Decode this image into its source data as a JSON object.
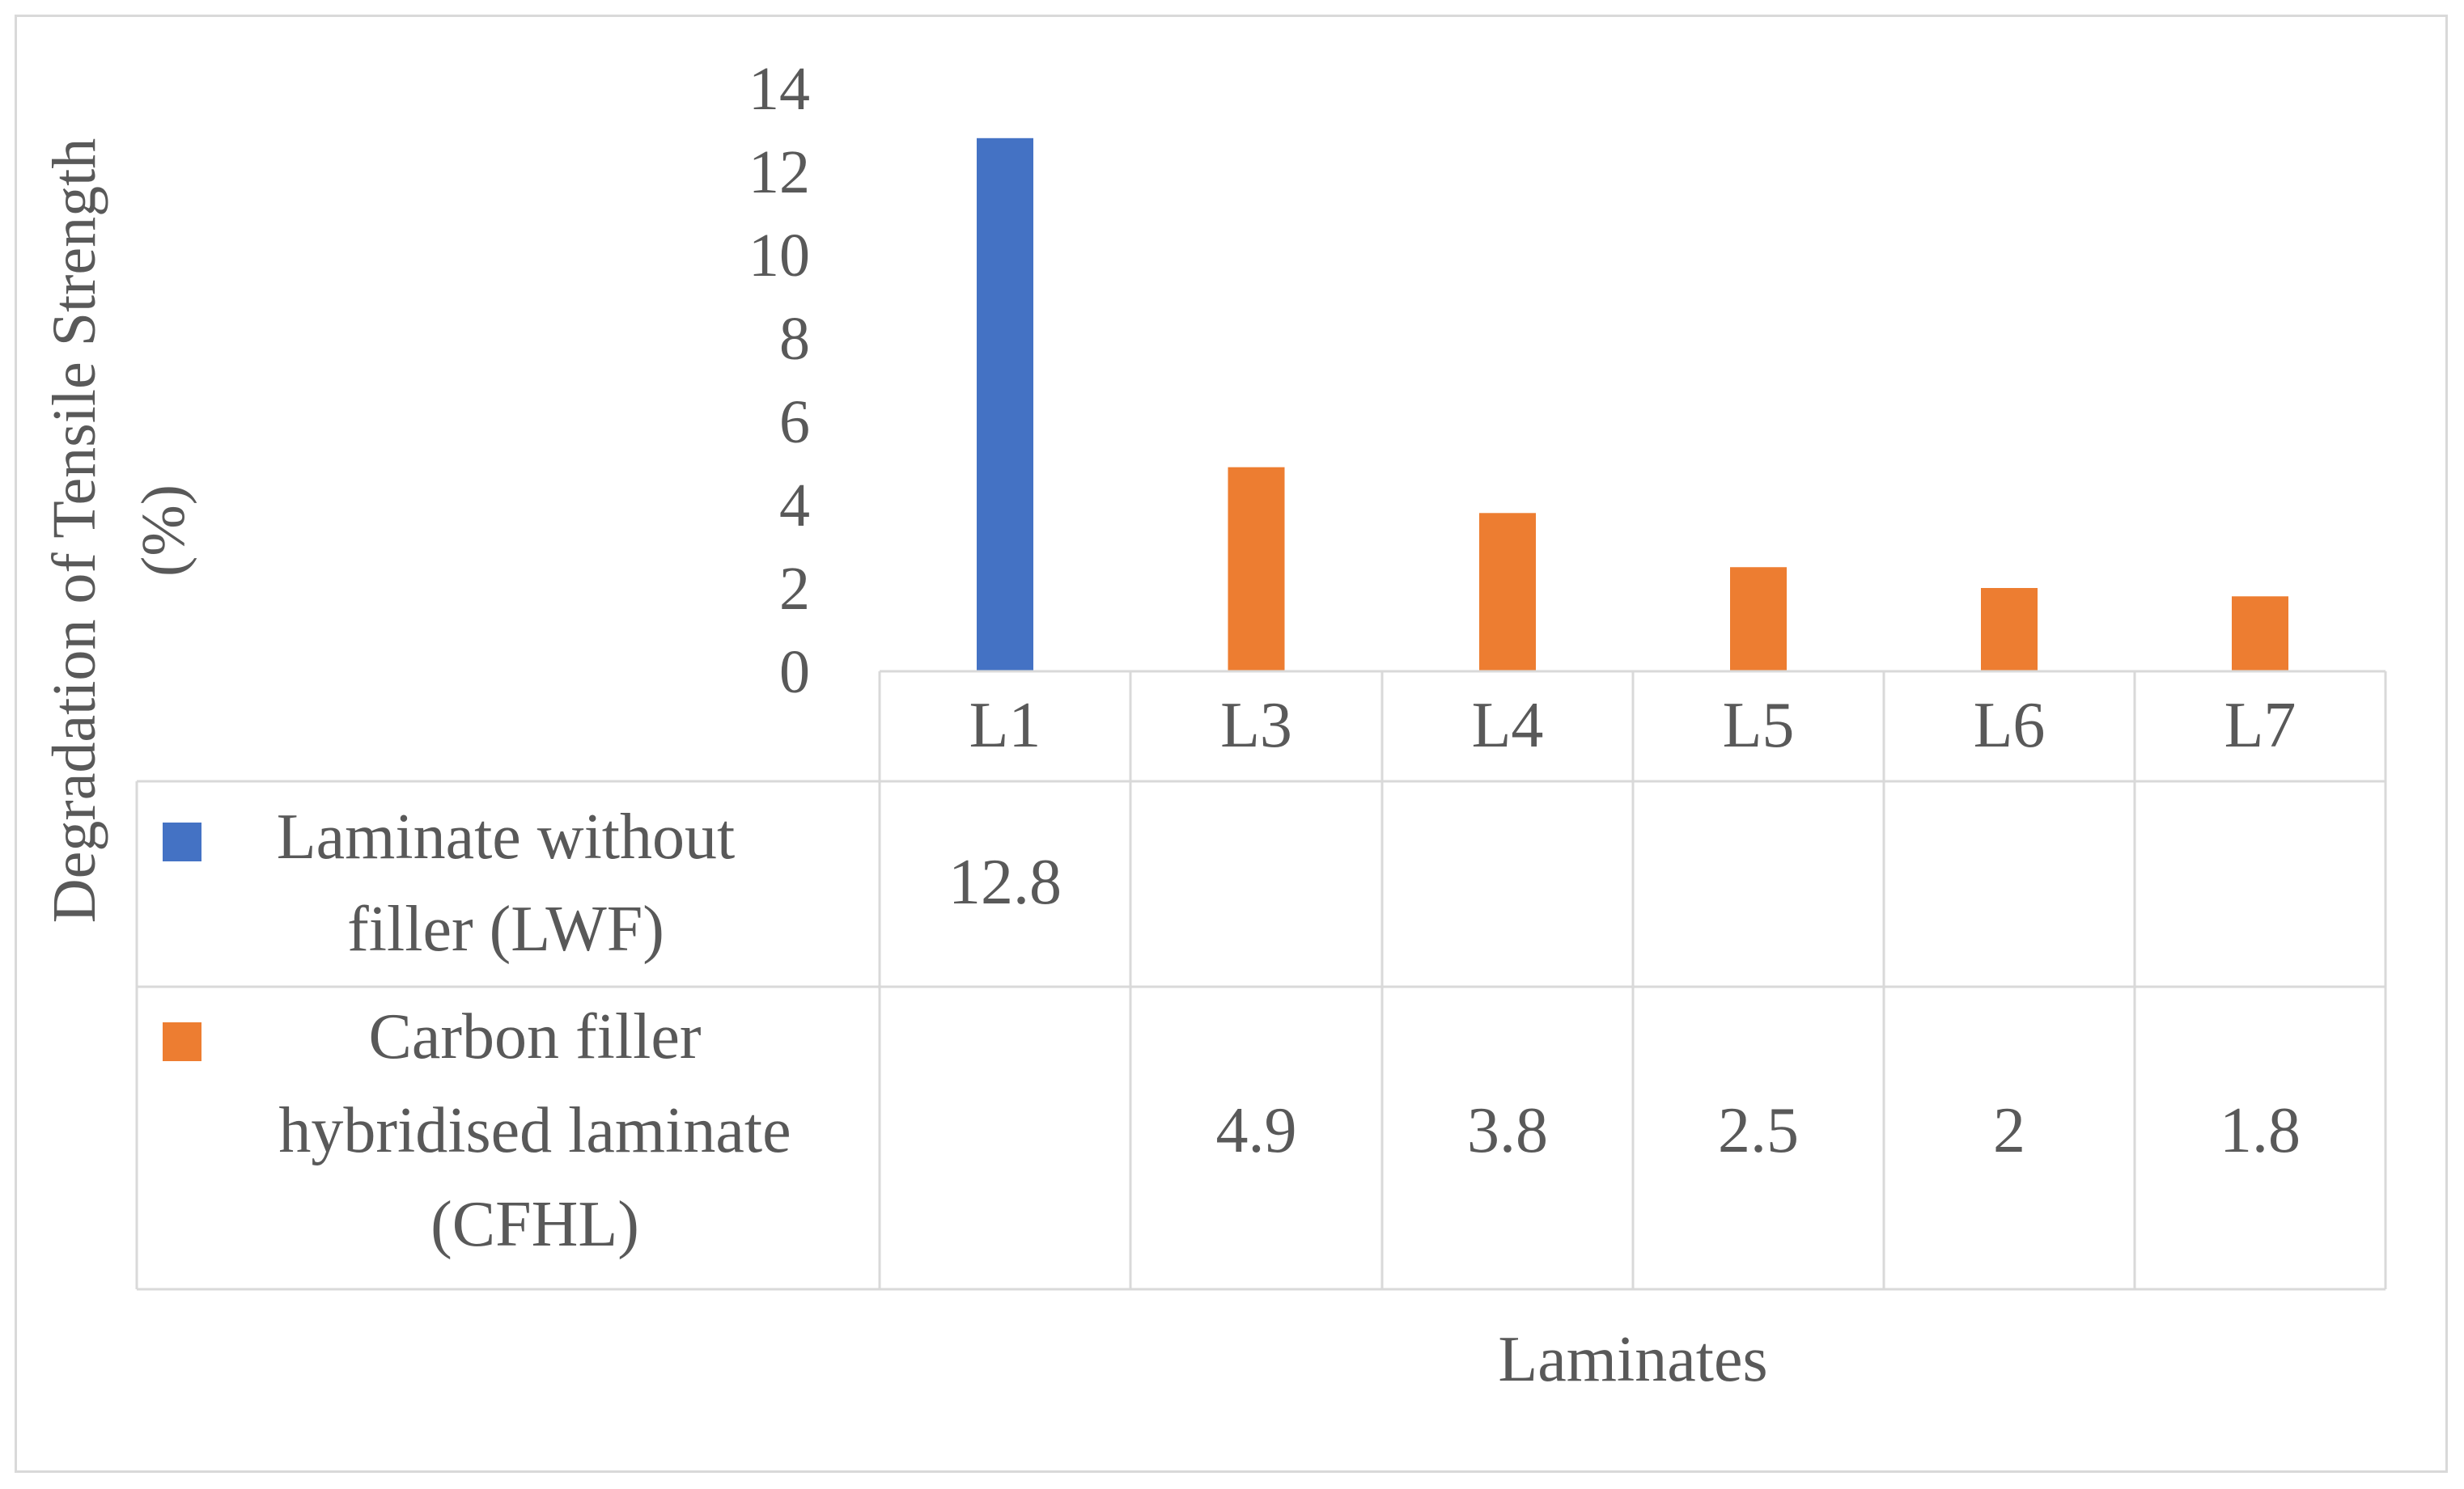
{
  "chart_data": {
    "type": "bar",
    "title": "",
    "xlabel": "Laminates",
    "ylabel": "Degradation of Tensile Strength (%)",
    "ylabel_lines": [
      "Degradation of Tensile Strength",
      "(%)"
    ],
    "ylim": [
      0,
      14
    ],
    "yticks": [
      "0",
      "2",
      "4",
      "6",
      "8",
      "10",
      "12",
      "14"
    ],
    "grid": false,
    "legend_placement": "data-table",
    "categories": [
      "L1",
      "L3",
      "L4",
      "L5",
      "L6",
      "L7"
    ],
    "series": [
      {
        "name": "Laminate without filler (LWF)",
        "name_lines": [
          "Laminate without",
          "filler (LWF)"
        ],
        "color": "#4472C4",
        "values": [
          12.8,
          null,
          null,
          null,
          null,
          null
        ],
        "labels": [
          "12.8",
          "",
          "",
          "",
          "",
          ""
        ]
      },
      {
        "name": "Carbon filler hybridised laminate (CFHL)",
        "name_lines": [
          "Carbon filler",
          "hybridised laminate",
          "(CFHL)"
        ],
        "color": "#ED7D31",
        "values": [
          null,
          4.9,
          3.8,
          2.5,
          2,
          1.8
        ],
        "labels": [
          "",
          "4.9",
          "3.8",
          "2.5",
          "2",
          "1.8"
        ]
      }
    ]
  }
}
